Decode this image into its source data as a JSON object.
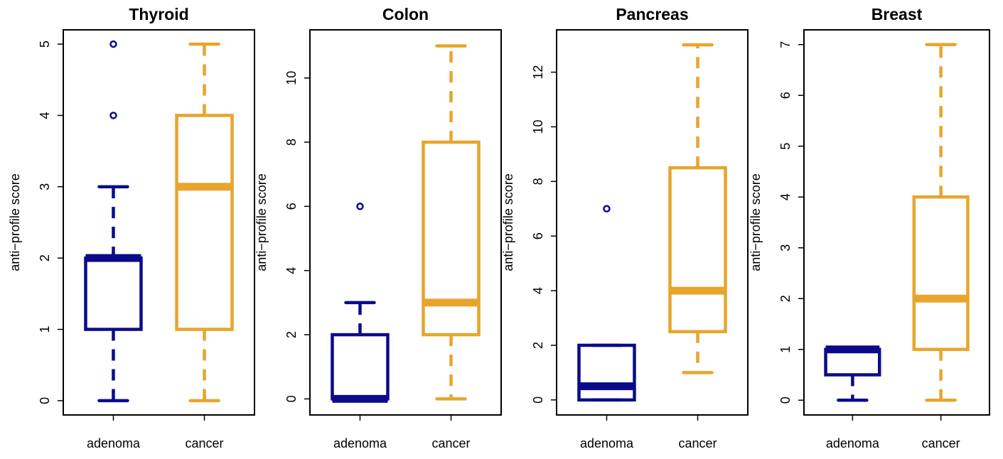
{
  "colors": {
    "adenoma": "#0B0B8A",
    "cancer": "#E8A52C",
    "axis": "#000000"
  },
  "chart_data": [
    {
      "type": "box",
      "title": "Thyroid",
      "ylabel": "anti−profile score",
      "categories": [
        "adenoma",
        "cancer"
      ],
      "yticks": [
        0,
        1,
        2,
        3,
        4,
        5
      ],
      "ylim": [
        -0.2,
        5.2
      ],
      "boxes": [
        {
          "name": "adenoma",
          "min": 0,
          "q1": 1,
          "median": 2,
          "q3": 2,
          "max": 3,
          "outliers": [
            4,
            5
          ]
        },
        {
          "name": "cancer",
          "min": 0,
          "q1": 1,
          "median": 3,
          "q3": 4,
          "max": 5,
          "outliers": []
        }
      ]
    },
    {
      "type": "box",
      "title": "Colon",
      "ylabel": "anti−profile score",
      "categories": [
        "adenoma",
        "cancer"
      ],
      "yticks": [
        0,
        2,
        4,
        6,
        8,
        10
      ],
      "ylim": [
        -0.5,
        11.5
      ],
      "boxes": [
        {
          "name": "adenoma",
          "min": 0,
          "q1": 0,
          "median": 0,
          "q3": 2,
          "max": 3,
          "outliers": [
            6
          ]
        },
        {
          "name": "cancer",
          "min": 0,
          "q1": 2,
          "median": 3,
          "q3": 8,
          "max": 11,
          "outliers": []
        }
      ]
    },
    {
      "type": "box",
      "title": "Pancreas",
      "ylabel": "anti−profile score",
      "categories": [
        "adenoma",
        "cancer"
      ],
      "yticks": [
        0,
        2,
        4,
        6,
        8,
        10,
        12
      ],
      "ylim": [
        -0.55,
        13.55
      ],
      "boxes": [
        {
          "name": "adenoma",
          "min": 0,
          "q1": 0,
          "median": 0.5,
          "q3": 2,
          "max": 2,
          "outliers": [
            7
          ]
        },
        {
          "name": "cancer",
          "min": 1,
          "q1": 2.5,
          "median": 4,
          "q3": 8.5,
          "max": 13,
          "outliers": []
        }
      ]
    },
    {
      "type": "box",
      "title": "Breast",
      "ylabel": "anti−profile score",
      "categories": [
        "adenoma",
        "cancer"
      ],
      "yticks": [
        0,
        1,
        2,
        3,
        4,
        5,
        6,
        7
      ],
      "ylim": [
        -0.29,
        7.29
      ],
      "boxes": [
        {
          "name": "adenoma",
          "min": 0,
          "q1": 0.5,
          "median": 1,
          "q3": 1,
          "max": 1,
          "outliers": []
        },
        {
          "name": "cancer",
          "min": 0,
          "q1": 1,
          "median": 2,
          "q3": 4,
          "max": 7,
          "outliers": []
        }
      ]
    }
  ]
}
